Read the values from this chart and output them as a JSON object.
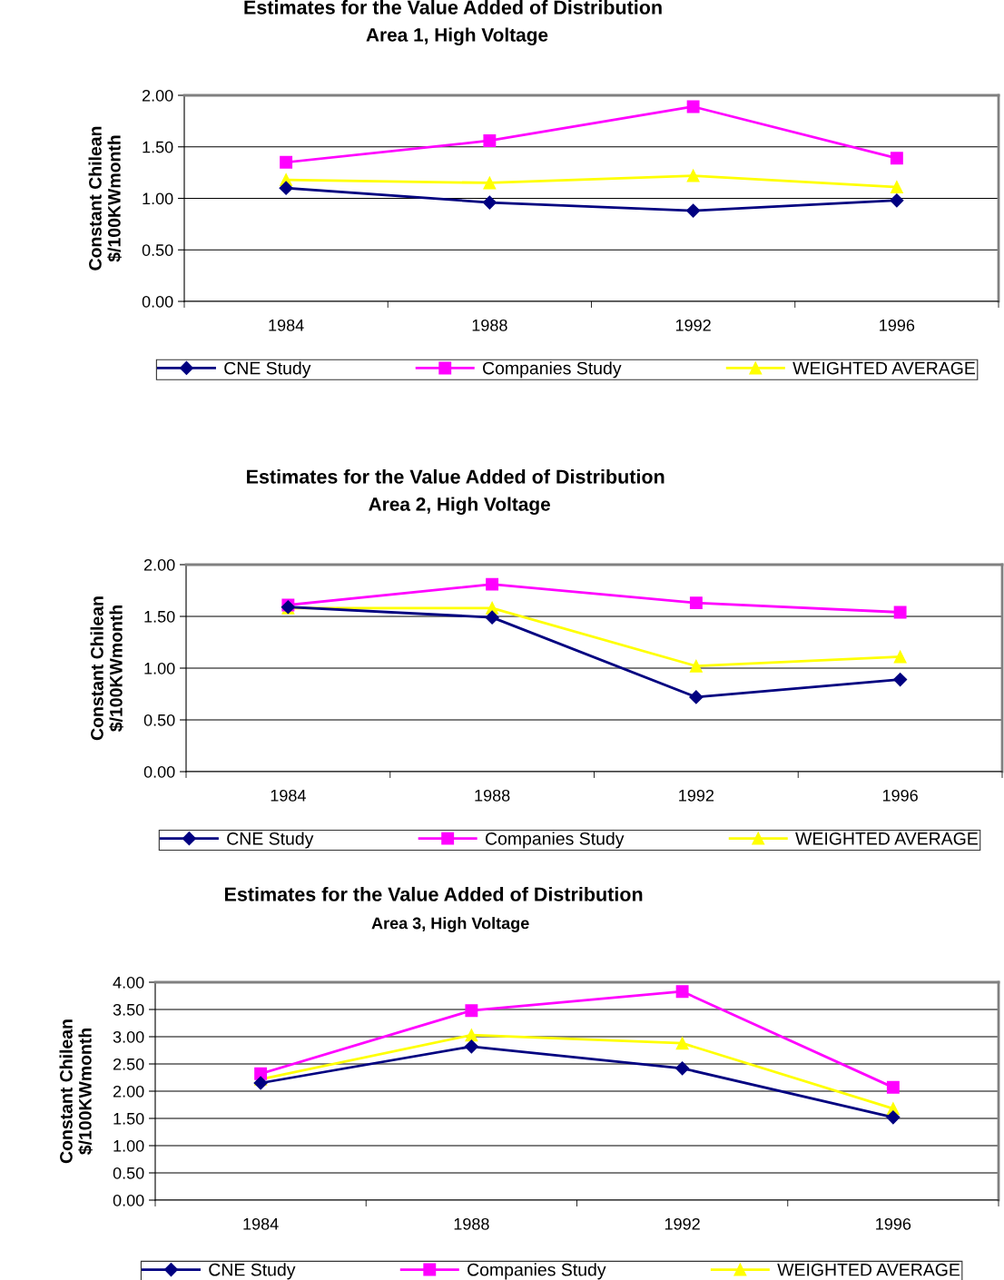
{
  "chart_data": [
    {
      "type": "line",
      "title": "Estimates for the Value Added of Distribution",
      "subtitle": "Area 1, High Voltage",
      "ylabel": "Constant Chilean\n$/100KWmonth",
      "categories": [
        "1984",
        "1988",
        "1992",
        "1996"
      ],
      "ylim": [
        0,
        2
      ],
      "yticks": [
        {
          "value": 0,
          "label": "0.00"
        },
        {
          "value": 0.5,
          "label": "0.50"
        },
        {
          "value": 1,
          "label": "1.00"
        },
        {
          "value": 1.5,
          "label": "1.50"
        },
        {
          "value": 2,
          "label": "2.00"
        }
      ],
      "grid": "y",
      "legend": "bottom",
      "series": [
        {
          "name": "CNE Study",
          "color": "#000080",
          "marker": "diamond",
          "values": [
            1.1,
            0.96,
            0.88,
            0.98
          ]
        },
        {
          "name": "Companies Study",
          "color": "#ff00ff",
          "marker": "square",
          "values": [
            1.35,
            1.56,
            1.89,
            1.39
          ]
        },
        {
          "name": "WEIGHTED AVERAGE",
          "color": "#ffff00",
          "marker": "triangle",
          "values": [
            1.18,
            1.15,
            1.22,
            1.11
          ]
        }
      ]
    },
    {
      "type": "line",
      "title": "Estimates for the Value Added of Distribution",
      "subtitle": "Area 2, High Voltage",
      "ylabel": "Constant Chilean\n$/100KWmonth",
      "categories": [
        "1984",
        "1988",
        "1992",
        "1996"
      ],
      "ylim": [
        0,
        2
      ],
      "yticks": [
        {
          "value": 0,
          "label": "0.00"
        },
        {
          "value": 0.5,
          "label": "0.50"
        },
        {
          "value": 1,
          "label": "1.00"
        },
        {
          "value": 1.5,
          "label": "1.50"
        },
        {
          "value": 2,
          "label": "2.00"
        }
      ],
      "grid": "y",
      "legend": "bottom",
      "series": [
        {
          "name": "CNE Study",
          "color": "#000080",
          "marker": "diamond",
          "values": [
            1.59,
            1.49,
            0.72,
            0.89
          ]
        },
        {
          "name": "Companies Study",
          "color": "#ff00ff",
          "marker": "square",
          "values": [
            1.61,
            1.81,
            1.63,
            1.54
          ]
        },
        {
          "name": "WEIGHTED AVERAGE",
          "color": "#ffff00",
          "marker": "triangle",
          "values": [
            1.58,
            1.58,
            1.02,
            1.11
          ]
        }
      ]
    },
    {
      "type": "line",
      "title": "Estimates for the Value Added of Distribution",
      "subtitle": "Area 3, High Voltage",
      "ylabel": "Constant Chilean\n$/100KWmonth",
      "categories": [
        "1984",
        "1988",
        "1992",
        "1996"
      ],
      "ylim": [
        0,
        4
      ],
      "yticks": [
        {
          "value": 0,
          "label": "0.00"
        },
        {
          "value": 0.5,
          "label": "0.50"
        },
        {
          "value": 1,
          "label": "1.00"
        },
        {
          "value": 1.5,
          "label": "1.50"
        },
        {
          "value": 2,
          "label": "2.00"
        },
        {
          "value": 2.5,
          "label": "2.50"
        },
        {
          "value": 3,
          "label": "3.00"
        },
        {
          "value": 3.5,
          "label": "3.50"
        },
        {
          "value": 4,
          "label": "4.00"
        }
      ],
      "grid": "y",
      "legend": "bottom",
      "series": [
        {
          "name": "CNE Study",
          "color": "#000080",
          "marker": "diamond",
          "values": [
            2.15,
            2.82,
            2.42,
            1.52
          ]
        },
        {
          "name": "Companies Study",
          "color": "#ff00ff",
          "marker": "square",
          "values": [
            2.32,
            3.48,
            3.83,
            2.07
          ]
        },
        {
          "name": "WEIGHTED AVERAGE",
          "color": "#ffff00",
          "marker": "triangle",
          "values": [
            2.22,
            3.03,
            2.88,
            1.68
          ]
        }
      ]
    }
  ]
}
